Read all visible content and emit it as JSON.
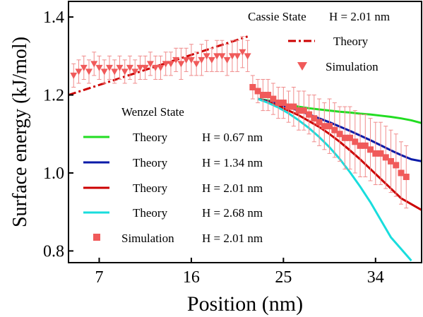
{
  "chart_data": {
    "type": "line",
    "xlabel": "Position (nm)",
    "ylabel": "Surface energy (kJ/mol)",
    "xlim": [
      4,
      38.5
    ],
    "ylim": [
      0.77,
      1.44
    ],
    "x_ticks": [
      7,
      16,
      25,
      34
    ],
    "y_ticks": [
      0.8,
      1.0,
      1.2,
      1.4
    ],
    "x_tick_labels": [
      "7",
      "16",
      "25",
      "34"
    ],
    "y_tick_labels": [
      "0.8",
      "1.0",
      "1.2",
      "1.4"
    ],
    "legends": {
      "cassie": {
        "title": "Cassie State",
        "title_param": "H = 2.01 nm",
        "entries": [
          {
            "series": "cassie_theory",
            "label": "Theory"
          },
          {
            "series": "cassie_simulation",
            "label": "Simulation"
          }
        ]
      },
      "wenzel": {
        "title": "Wenzel State",
        "entries": [
          {
            "series": "wenzel_theory_067",
            "label": "Theory",
            "param": "H = 0.67 nm"
          },
          {
            "series": "wenzel_theory_134",
            "label": "Theory",
            "param": "H = 1.34 nm"
          },
          {
            "series": "wenzel_theory_201",
            "label": "Theory",
            "param": "H = 2.01 nm"
          },
          {
            "series": "wenzel_theory_268",
            "label": "Theory",
            "param": "H = 2.68 nm"
          },
          {
            "series": "wenzel_simulation",
            "label": "Simulation",
            "param": "H = 2.01 nm"
          }
        ]
      }
    },
    "series": [
      {
        "id": "cassie_theory",
        "kind": "line",
        "style": "dashdot",
        "color": "#cc0000",
        "x": [
          4.0,
          21.5
        ],
        "y": [
          1.2,
          1.35
        ]
      },
      {
        "id": "cassie_simulation",
        "kind": "scatter",
        "marker": "triangle-down",
        "color": "#f05a5a",
        "x": [
          4.5,
          5.0,
          5.5,
          6.0,
          6.5,
          7.0,
          7.5,
          8.0,
          8.5,
          9.0,
          9.5,
          10.0,
          10.5,
          11.0,
          11.5,
          12.0,
          12.5,
          13.0,
          13.5,
          14.0,
          14.5,
          15.0,
          15.5,
          16.0,
          16.5,
          17.0,
          17.5,
          18.0,
          18.5,
          19.0,
          19.5,
          20.0,
          20.5,
          21.0,
          21.5
        ],
        "y": [
          1.25,
          1.26,
          1.27,
          1.26,
          1.28,
          1.27,
          1.26,
          1.27,
          1.26,
          1.27,
          1.26,
          1.27,
          1.26,
          1.27,
          1.27,
          1.28,
          1.27,
          1.27,
          1.28,
          1.28,
          1.29,
          1.28,
          1.29,
          1.29,
          1.28,
          1.29,
          1.3,
          1.29,
          1.3,
          1.3,
          1.29,
          1.3,
          1.3,
          1.31,
          1.3
        ],
        "err": [
          0.03,
          0.03,
          0.03,
          0.03,
          0.03,
          0.03,
          0.03,
          0.03,
          0.03,
          0.03,
          0.03,
          0.03,
          0.03,
          0.03,
          0.03,
          0.03,
          0.03,
          0.03,
          0.03,
          0.03,
          0.03,
          0.04,
          0.03,
          0.04,
          0.03,
          0.04,
          0.04,
          0.03,
          0.04,
          0.04,
          0.04,
          0.04,
          0.04,
          0.04,
          0.04
        ]
      },
      {
        "id": "wenzel_theory_067",
        "kind": "line",
        "style": "solid",
        "color": "#22dd22",
        "x": [
          22.5,
          23.5,
          24.5,
          25.5,
          26.5,
          27.5,
          28.5,
          29.5,
          30.5,
          31.5,
          32.5,
          33.5,
          34.5,
          35.5,
          36.5,
          37.5,
          38.5
        ],
        "y": [
          1.19,
          1.186,
          1.18,
          1.175,
          1.17,
          1.166,
          1.163,
          1.16,
          1.157,
          1.155,
          1.152,
          1.15,
          1.147,
          1.144,
          1.14,
          1.135,
          1.128
        ]
      },
      {
        "id": "wenzel_theory_134",
        "kind": "line",
        "style": "solid",
        "color": "#0a1aa8",
        "x": [
          22.5,
          23.5,
          24.5,
          25.5,
          26.5,
          27.5,
          28.5,
          29.5,
          30.5,
          31.5,
          32.5,
          33.5,
          34.5,
          35.5,
          36.5,
          37.5,
          38.5
        ],
        "y": [
          1.19,
          1.184,
          1.176,
          1.168,
          1.16,
          1.15,
          1.14,
          1.13,
          1.119,
          1.108,
          1.096,
          1.084,
          1.071,
          1.058,
          1.046,
          1.035,
          1.03
        ]
      },
      {
        "id": "wenzel_theory_201",
        "kind": "line",
        "style": "solid",
        "color": "#cc0000",
        "x": [
          22.5,
          23.5,
          24.5,
          25.5,
          26.5,
          27.5,
          28.5,
          29.5,
          30.5,
          31.5,
          32.5,
          33.5,
          34.5,
          35.5,
          36.5,
          37.5,
          38.5
        ],
        "y": [
          1.19,
          1.182,
          1.172,
          1.16,
          1.148,
          1.133,
          1.118,
          1.1,
          1.08,
          1.058,
          1.035,
          1.01,
          0.985,
          0.96,
          0.935,
          0.92,
          0.905
        ]
      },
      {
        "id": "wenzel_theory_268",
        "kind": "line",
        "style": "solid",
        "color": "#19dddd",
        "x": [
          22.5,
          23.5,
          24.5,
          25.5,
          26.5,
          27.5,
          28.5,
          29.5,
          30.5,
          31.5,
          32.5,
          33.5,
          34.5,
          35.5,
          36.5,
          37.5
        ],
        "y": [
          1.19,
          1.18,
          1.168,
          1.153,
          1.135,
          1.115,
          1.092,
          1.066,
          1.036,
          1.002,
          0.965,
          0.925,
          0.88,
          0.835,
          0.805,
          0.775
        ]
      },
      {
        "id": "wenzel_simulation",
        "kind": "scatter",
        "marker": "square",
        "color": "#f05a5a",
        "x": [
          22.0,
          22.5,
          23.0,
          23.5,
          24.0,
          24.5,
          25.0,
          25.5,
          26.0,
          26.5,
          27.0,
          27.5,
          28.0,
          28.5,
          29.0,
          29.5,
          30.0,
          30.5,
          31.0,
          31.5,
          32.0,
          32.5,
          33.0,
          33.5,
          34.0,
          34.5,
          35.0,
          35.5,
          36.0,
          36.5,
          37.0
        ],
        "y": [
          1.22,
          1.21,
          1.2,
          1.2,
          1.19,
          1.18,
          1.18,
          1.17,
          1.17,
          1.16,
          1.16,
          1.15,
          1.14,
          1.13,
          1.12,
          1.12,
          1.11,
          1.1,
          1.09,
          1.09,
          1.08,
          1.07,
          1.07,
          1.06,
          1.05,
          1.05,
          1.04,
          1.03,
          1.02,
          1.0,
          0.99
        ],
        "err": [
          0.03,
          0.03,
          0.04,
          0.04,
          0.04,
          0.04,
          0.04,
          0.04,
          0.05,
          0.05,
          0.05,
          0.05,
          0.06,
          0.06,
          0.06,
          0.07,
          0.07,
          0.07,
          0.08,
          0.08,
          0.08,
          0.08,
          0.08,
          0.08,
          0.08,
          0.08,
          0.08,
          0.08,
          0.08,
          0.08,
          0.08
        ]
      }
    ]
  }
}
